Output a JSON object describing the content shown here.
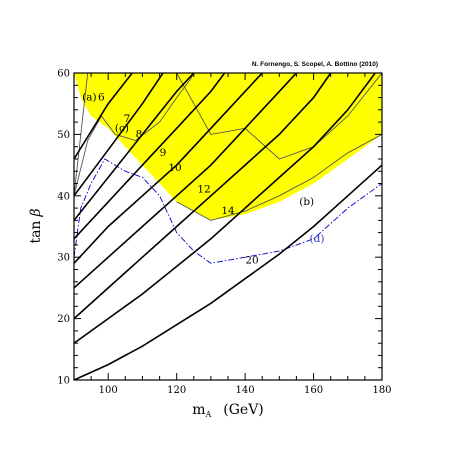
{
  "chart_data": {
    "type": "line",
    "annotation_top": "N. Fornengo, S. Scopel, A. Bottino  (2010)",
    "xlabel_main": "m",
    "xlabel_sub": "A",
    "xlabel_unit": "(GeV)",
    "ylabel_main": "tan",
    "ylabel_symbol": "β",
    "xlim": [
      90,
      180
    ],
    "ylim": [
      10,
      60
    ],
    "xticks": [
      100,
      120,
      140,
      160,
      180
    ],
    "yticks": [
      10,
      20,
      30,
      40,
      50,
      60
    ],
    "colors": {
      "excluded_fill": "#ffff00",
      "contour": "#000000",
      "boundary": "#555555",
      "dashdot": "#0000cc"
    },
    "excluded_region": [
      [
        90,
        60
      ],
      [
        180,
        60
      ],
      [
        180,
        50
      ],
      [
        170,
        46
      ],
      [
        160,
        42
      ],
      [
        150,
        39
      ],
      [
        140,
        37
      ],
      [
        130,
        36
      ],
      [
        120,
        39
      ],
      [
        110,
        45
      ],
      [
        100,
        51
      ],
      [
        95,
        53
      ],
      [
        92,
        56
      ],
      [
        90,
        60
      ]
    ],
    "boundary_lines": [
      {
        "points": [
          [
            90,
            40
          ],
          [
            92,
            50
          ],
          [
            94,
            60
          ]
        ]
      },
      {
        "points": [
          [
            90,
            40
          ],
          [
            94,
            49
          ],
          [
            98,
            53
          ],
          [
            102,
            50
          ],
          [
            108,
            49
          ],
          [
            115,
            52
          ],
          [
            120,
            56
          ],
          [
            124,
            59
          ],
          [
            125,
            60
          ]
        ]
      },
      {
        "points": [
          [
            120,
            60
          ],
          [
            125,
            55
          ],
          [
            130,
            50
          ],
          [
            140,
            51
          ],
          [
            150,
            46
          ],
          [
            160,
            48
          ],
          [
            170,
            53
          ],
          [
            180,
            60
          ]
        ]
      },
      {
        "points": [
          [
            180,
            50
          ],
          [
            170,
            47
          ],
          [
            160,
            43
          ],
          [
            150,
            40
          ],
          [
            140,
            37.5
          ],
          [
            130,
            36
          ],
          [
            120,
            39
          ]
        ]
      }
    ],
    "dashdot_line": {
      "points": [
        [
          90,
          30
        ],
        [
          92,
          38
        ],
        [
          95,
          42
        ],
        [
          99,
          46
        ],
        [
          105,
          44
        ],
        [
          110,
          43
        ],
        [
          115,
          40
        ],
        [
          120,
          34
        ],
        [
          125,
          31
        ],
        [
          130,
          29
        ],
        [
          140,
          30
        ],
        [
          150,
          31
        ],
        [
          160,
          33
        ],
        [
          170,
          38
        ],
        [
          180,
          42
        ]
      ]
    },
    "contours": [
      {
        "label": "6",
        "label_at": [
          98,
          55.5
        ],
        "points": [
          [
            90,
            46
          ],
          [
            100,
            55
          ],
          [
            107,
            60
          ]
        ]
      },
      {
        "label": "7",
        "label_at": [
          105.5,
          52
        ],
        "points": [
          [
            90,
            40
          ],
          [
            100,
            47.5
          ],
          [
            110,
            55
          ],
          [
            116,
            60
          ]
        ]
      },
      {
        "label": "8",
        "label_at": [
          109,
          49.5
        ],
        "points": [
          [
            90,
            36
          ],
          [
            100,
            43
          ],
          [
            110,
            50
          ],
          [
            120,
            57
          ],
          [
            125,
            60
          ]
        ]
      },
      {
        "label": "9",
        "label_at": [
          116,
          46.5
        ],
        "points": [
          [
            90,
            33
          ],
          [
            100,
            39
          ],
          [
            110,
            45
          ],
          [
            120,
            51
          ],
          [
            130,
            57
          ],
          [
            134,
            60
          ]
        ]
      },
      {
        "label": "10",
        "label_at": [
          119.5,
          44
        ],
        "points": [
          [
            90,
            29
          ],
          [
            100,
            35
          ],
          [
            110,
            40
          ],
          [
            120,
            45
          ],
          [
            130,
            51
          ],
          [
            140,
            57
          ],
          [
            145,
            60
          ]
        ]
      },
      {
        "label": "12",
        "label_at": [
          128,
          40.5
        ],
        "points": [
          [
            90,
            25
          ],
          [
            100,
            30
          ],
          [
            110,
            35
          ],
          [
            120,
            40
          ],
          [
            130,
            45
          ],
          [
            140,
            51
          ],
          [
            150,
            57
          ],
          [
            155,
            60
          ]
        ]
      },
      {
        "label": "14",
        "label_at": [
          135,
          37
        ],
        "points": [
          [
            90,
            20
          ],
          [
            100,
            25
          ],
          [
            110,
            30
          ],
          [
            120,
            35
          ],
          [
            130,
            40
          ],
          [
            140,
            45
          ],
          [
            150,
            50
          ],
          [
            160,
            56
          ],
          [
            165,
            60
          ]
        ]
      },
      {
        "label": "20",
        "label_at": [
          142,
          29
        ],
        "points": [
          [
            90,
            10
          ],
          [
            100,
            12.5
          ],
          [
            110,
            15.5
          ],
          [
            120,
            19
          ],
          [
            130,
            22.5
          ],
          [
            140,
            26.5
          ],
          [
            150,
            30.5
          ],
          [
            160,
            35
          ],
          [
            170,
            40
          ],
          [
            180,
            45
          ]
        ]
      },
      {
        "label": "",
        "label_at": null,
        "points": [
          [
            90,
            16
          ],
          [
            100,
            20
          ],
          [
            110,
            24
          ],
          [
            120,
            28.5
          ],
          [
            130,
            33
          ],
          [
            140,
            38
          ],
          [
            150,
            43
          ],
          [
            160,
            48
          ],
          [
            170,
            54
          ],
          [
            178,
            60
          ]
        ]
      }
    ],
    "region_labels": [
      {
        "text": "(a)",
        "at": [
          94.5,
          55.5
        ],
        "color": "#000000"
      },
      {
        "text": "(c)",
        "at": [
          104,
          50.5
        ],
        "color": "#000000"
      },
      {
        "text": "(b)",
        "at": [
          158,
          38.5
        ],
        "color": "#000000"
      },
      {
        "text": "(d)",
        "at": [
          161,
          32.5
        ],
        "color": "#3333cc"
      }
    ]
  }
}
